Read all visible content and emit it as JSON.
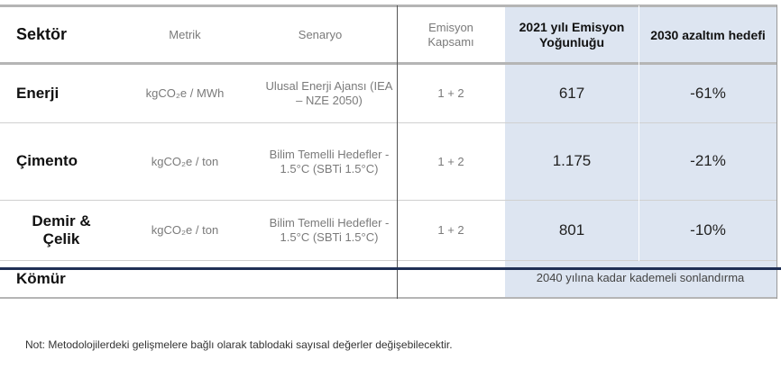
{
  "headers": {
    "sector": "Sektör",
    "metric": "Metrik",
    "scenario": "Senaryo",
    "scope": "Emisyon Kapsamı",
    "intensity": "2021 yılı Emisyon Yoğunluğu",
    "target": "2030 azaltım hedefi"
  },
  "rows": [
    {
      "sector": "Enerji",
      "metric": "kgCO₂e / MWh",
      "scenario": "Ulusal Enerji Ajansı (IEA – NZE 2050)",
      "scope": "1 + 2",
      "intensity": "617",
      "target": "-61%"
    },
    {
      "sector": "Çimento",
      "metric": "kgCO₂e / ton",
      "scenario": "Bilim Temelli Hedefler - 1.5°C (SBTi 1.5°C)",
      "scope": "1 + 2",
      "intensity": "1.175",
      "target": "-21%"
    },
    {
      "sector": "Demir & Çelik",
      "metric": "kgCO₂e / ton",
      "scenario": "Bilim Temelli Hedefler - 1.5°C (SBTi 1.5°C)",
      "scope": "1 + 2",
      "intensity": "801",
      "target": "-10%"
    },
    {
      "sector": "Kömür",
      "merged": "2040 yılına kadar kademeli sonlandırma"
    }
  ],
  "note": "Not: Metodolojilerdeki gelişmelere bağlı olarak tablodaki sayısal değerler değişebilecektir.",
  "colors": {
    "shade": "#dde5f1",
    "rule": "#1f2f55"
  }
}
